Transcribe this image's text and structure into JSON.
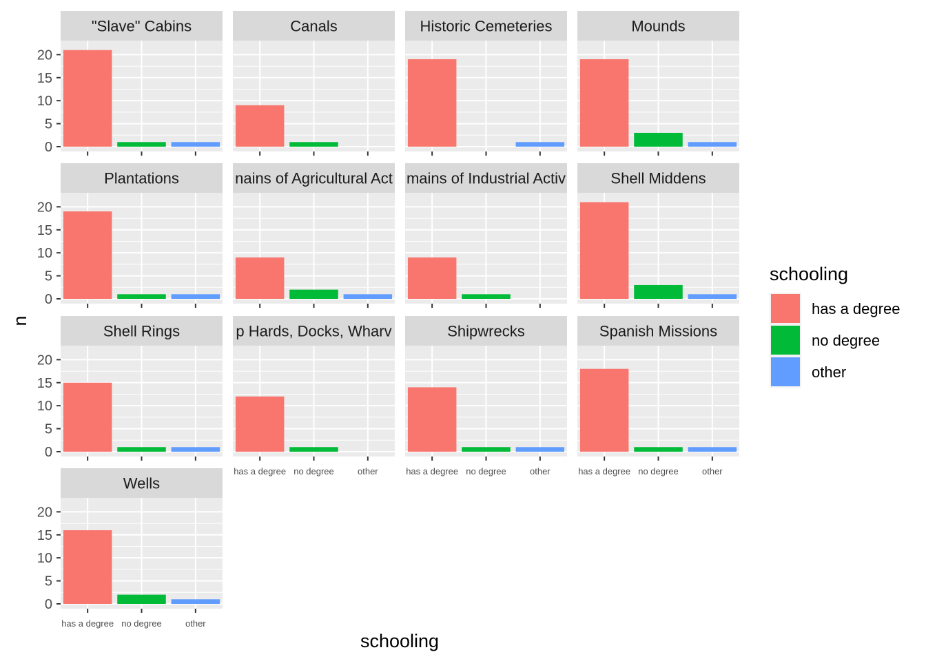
{
  "chart_data": {
    "type": "bar",
    "facet_layout": "wrap",
    "xlabel": "schooling",
    "ylabel": "n",
    "categories": [
      "has a degree",
      "no degree",
      "other"
    ],
    "yticks": [
      0,
      5,
      10,
      15,
      20
    ],
    "ylim": [
      0,
      22
    ],
    "grid": true,
    "legend": {
      "title": "schooling",
      "placement": "right",
      "entries": [
        {
          "label": "has a degree",
          "color": "#F8766D"
        },
        {
          "label": "no degree",
          "color": "#00BA38"
        },
        {
          "label": "other",
          "color": "#619CFF"
        }
      ]
    },
    "colors": {
      "has a degree": "#F8766D",
      "no degree": "#00BA38",
      "other": "#619CFF",
      "panel_background": "#EBEBEB",
      "strip_background": "#D9D9D9",
      "grid": "#FFFFFF"
    },
    "facets": [
      {
        "title": "\"Slave\" Cabins",
        "values": [
          21,
          1,
          1
        ]
      },
      {
        "title": "Canals",
        "values": [
          9,
          1,
          0
        ]
      },
      {
        "title": "Historic Cemeteries",
        "values": [
          19,
          0,
          1
        ]
      },
      {
        "title": "Mounds",
        "values": [
          19,
          3,
          1
        ]
      },
      {
        "title": "Plantations",
        "values": [
          19,
          1,
          1
        ]
      },
      {
        "title": "Remains of Agricultural Activity",
        "visible_title": "nains of Agricultural Act",
        "values": [
          9,
          2,
          1
        ]
      },
      {
        "title": "Remains of Industrial Activity",
        "visible_title": "mains of Industrial Activ",
        "values": [
          9,
          1,
          0
        ]
      },
      {
        "title": "Shell Middens",
        "values": [
          21,
          3,
          1
        ]
      },
      {
        "title": "Shell Rings",
        "values": [
          15,
          1,
          1
        ]
      },
      {
        "title": "Ship Hards, Docks, Wharves",
        "visible_title": "p Hards, Docks, Wharv",
        "values": [
          12,
          1,
          0
        ]
      },
      {
        "title": "Shipwrecks",
        "values": [
          14,
          1,
          1
        ]
      },
      {
        "title": "Spanish Missions",
        "values": [
          18,
          1,
          1
        ]
      },
      {
        "title": "Wells",
        "values": [
          16,
          2,
          1
        ]
      }
    ]
  }
}
